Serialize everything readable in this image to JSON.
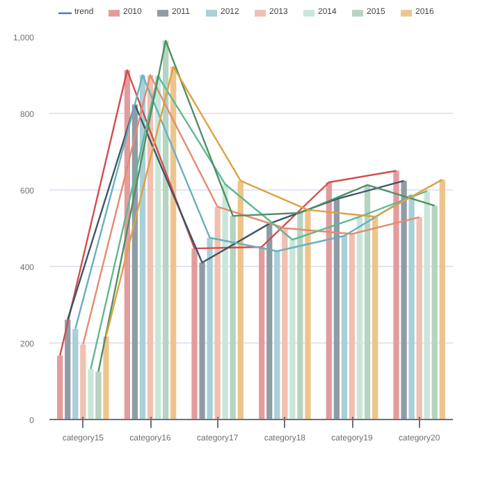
{
  "chart_data": {
    "type": "bar",
    "categories": [
      "category15",
      "category16",
      "category17",
      "category18",
      "category19",
      "category20"
    ],
    "series": [
      {
        "name": "trend",
        "type": "line",
        "color": "#5470c6",
        "values": [
          null,
          null,
          null,
          null,
          null,
          null
        ]
      },
      {
        "name": "2010",
        "color": "#e39c9c",
        "values": [
          167,
          913,
          447,
          451,
          620,
          650
        ]
      },
      {
        "name": "2011",
        "color": "#8f9ca6",
        "values": [
          261,
          823,
          410,
          512,
          576,
          624
        ]
      },
      {
        "name": "2012",
        "color": "#a9cfd7",
        "values": [
          237,
          900,
          475,
          440,
          480,
          587
        ]
      },
      {
        "name": "2013",
        "color": "#f1c0b1",
        "values": [
          196,
          900,
          556,
          500,
          485,
          529
        ]
      },
      {
        "name": "2014",
        "color": "#c9e7d9",
        "values": [
          132,
          898,
          615,
          470,
          530,
          597
        ]
      },
      {
        "name": "2015",
        "color": "#b6d4c1",
        "values": [
          125,
          990,
          532,
          540,
          613,
          559
        ]
      },
      {
        "name": "2016",
        "color": "#edc58c",
        "values": [
          217,
          922,
          624,
          548,
          530,
          627
        ]
      },
      {
        "type": "line",
        "color": "#d44c4c",
        "values": [
          167,
          913,
          447,
          451,
          620,
          650
        ]
      },
      {
        "type": "line",
        "color": "#3f5468",
        "values": [
          261,
          823,
          410,
          512,
          576,
          624
        ]
      },
      {
        "type": "line",
        "color": "#6ab0be",
        "values": [
          237,
          900,
          475,
          440,
          480,
          587
        ]
      },
      {
        "type": "line",
        "color": "#e58a6e",
        "values": [
          196,
          900,
          556,
          500,
          485,
          529
        ]
      },
      {
        "type": "line",
        "color": "#5fb892",
        "values": [
          132,
          898,
          615,
          470,
          530,
          597
        ]
      },
      {
        "type": "line",
        "color": "#4f8f68",
        "values": [
          125,
          990,
          532,
          540,
          613,
          559
        ]
      },
      {
        "type": "line",
        "color": "#e0a040",
        "values": [
          217,
          922,
          624,
          548,
          530,
          627
        ]
      }
    ],
    "ylim": [
      0,
      1000
    ],
    "yticks": [
      0,
      200,
      400,
      600,
      800,
      {
        "value": 1000,
        "label": "1,000"
      }
    ],
    "grid": "y",
    "legend": "top"
  }
}
